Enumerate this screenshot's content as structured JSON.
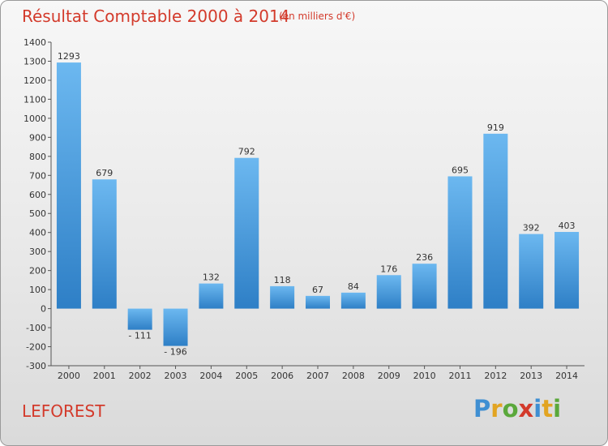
{
  "header": {
    "title": "Résultat Comptable 2000 à 2014",
    "subtitle": "(en milliers d'€)"
  },
  "footer": {
    "commune": "LEFOREST",
    "brand": "Proxiti",
    "brand_letters": [
      {
        "ch": "P",
        "color": "#3f8fd2"
      },
      {
        "ch": "r",
        "color": "#e2a421"
      },
      {
        "ch": "o",
        "color": "#5aa83b"
      },
      {
        "ch": "x",
        "color": "#d33a2b"
      },
      {
        "ch": "i",
        "color": "#3f8fd2"
      },
      {
        "ch": "t",
        "color": "#e2a421"
      },
      {
        "ch": "i",
        "color": "#5aa83b"
      }
    ]
  },
  "chart_data": {
    "type": "bar",
    "title": "Résultat Comptable 2000 à 2014",
    "subtitle": "(en milliers d'€)",
    "categories": [
      "2000",
      "2001",
      "2002",
      "2003",
      "2004",
      "2005",
      "2006",
      "2007",
      "2008",
      "2009",
      "2010",
      "2011",
      "2012",
      "2013",
      "2014"
    ],
    "values": [
      1293,
      679,
      -111,
      -196,
      132,
      792,
      118,
      67,
      84,
      176,
      236,
      695,
      919,
      392,
      403
    ],
    "value_labels": [
      "1293",
      "679",
      "- 111",
      "- 196",
      "132",
      "792",
      "118",
      "67",
      "84",
      "176",
      "236",
      "695",
      "919",
      "392",
      "403"
    ],
    "ylim": [
      -300,
      1400
    ],
    "yticks": [
      1400,
      1300,
      1200,
      1100,
      1000,
      900,
      800,
      700,
      600,
      500,
      400,
      300,
      200,
      100,
      0,
      -100,
      -200,
      -300
    ],
    "ytick_labels": [
      "1400",
      "1300",
      "1200",
      "1100",
      "1000",
      "900",
      "800",
      "700",
      "600",
      "500",
      "400",
      "300",
      "200",
      "100",
      "0",
      "-100",
      "-200",
      "-300"
    ],
    "grid": false,
    "colors": {
      "bar_light": "#6cb8f0",
      "bar_dark": "#2e7fc6",
      "text": "#333333",
      "axis": "#555555"
    }
  }
}
